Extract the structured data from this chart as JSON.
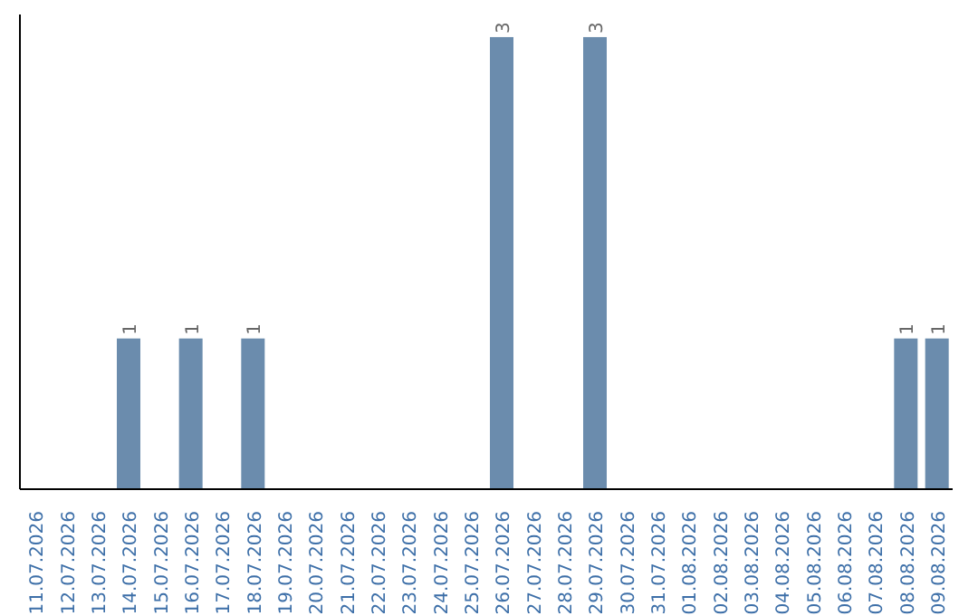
{
  "chart_data": {
    "type": "bar",
    "categories": [
      "11.07.2026",
      "12.07.2026",
      "13.07.2026",
      "14.07.2026",
      "15.07.2026",
      "16.07.2026",
      "17.07.2026",
      "18.07.2026",
      "19.07.2026",
      "20.07.2026",
      "21.07.2026",
      "22.07.2026",
      "23.07.2026",
      "24.07.2026",
      "25.07.2026",
      "26.07.2026",
      "27.07.2026",
      "28.07.2026",
      "29.07.2026",
      "30.07.2026",
      "31.07.2026",
      "01.08.2026",
      "02.08.2026",
      "03.08.2026",
      "04.08.2026",
      "05.08.2026",
      "06.08.2026",
      "07.08.2026",
      "08.08.2026",
      "09.08.2026"
    ],
    "values": [
      0,
      0,
      0,
      1,
      0,
      1,
      0,
      1,
      0,
      0,
      0,
      0,
      0,
      0,
      0,
      3,
      0,
      0,
      3,
      0,
      0,
      0,
      0,
      0,
      0,
      0,
      0,
      0,
      1,
      1
    ],
    "value_labels": [
      null,
      null,
      null,
      "1",
      null,
      "1",
      null,
      "1",
      null,
      null,
      null,
      null,
      null,
      null,
      null,
      "3",
      null,
      null,
      "3",
      null,
      null,
      null,
      null,
      null,
      null,
      null,
      null,
      null,
      "1",
      "1"
    ],
    "color": "#6b8cad",
    "tick_labels": "x"
  }
}
